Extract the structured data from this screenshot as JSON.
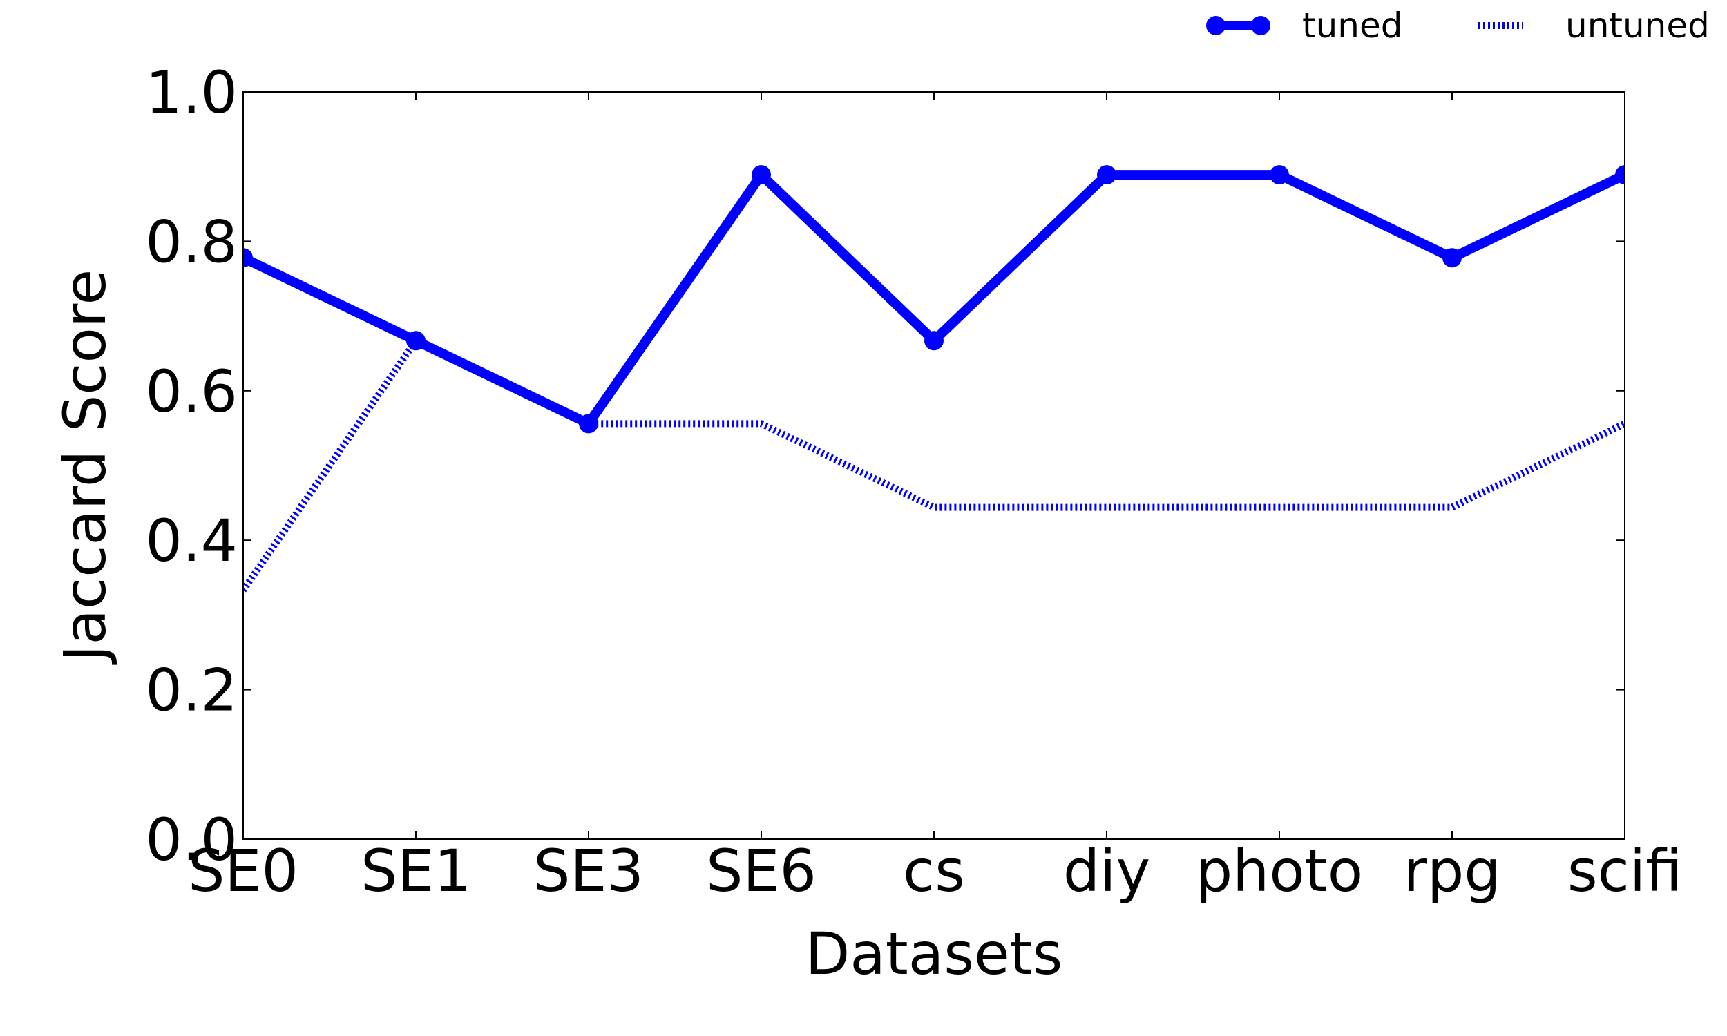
{
  "chart_data": {
    "type": "line",
    "title": "",
    "xlabel": "Datasets",
    "ylabel": "Jaccard Score",
    "categories": [
      "SE0",
      "SE1",
      "SE3",
      "SE6",
      "cs",
      "diy",
      "photo",
      "rpg",
      "scifi"
    ],
    "ylim": [
      0.0,
      1.0
    ],
    "yticks": [
      "0.0",
      "0.2",
      "0.4",
      "0.6",
      "0.8",
      "1.0"
    ],
    "grid": false,
    "legend_position": "top-right, above plot",
    "series": [
      {
        "name": "tuned",
        "style": "solid with circle markers",
        "color": "#0000ff",
        "values": [
          0.778,
          0.667,
          0.556,
          0.889,
          0.667,
          0.889,
          0.889,
          0.778,
          0.889
        ]
      },
      {
        "name": "untuned",
        "style": "dotted",
        "color": "#0000ff",
        "values": [
          0.333,
          0.667,
          0.556,
          0.556,
          0.444,
          0.444,
          0.444,
          0.444,
          0.556
        ]
      }
    ]
  }
}
